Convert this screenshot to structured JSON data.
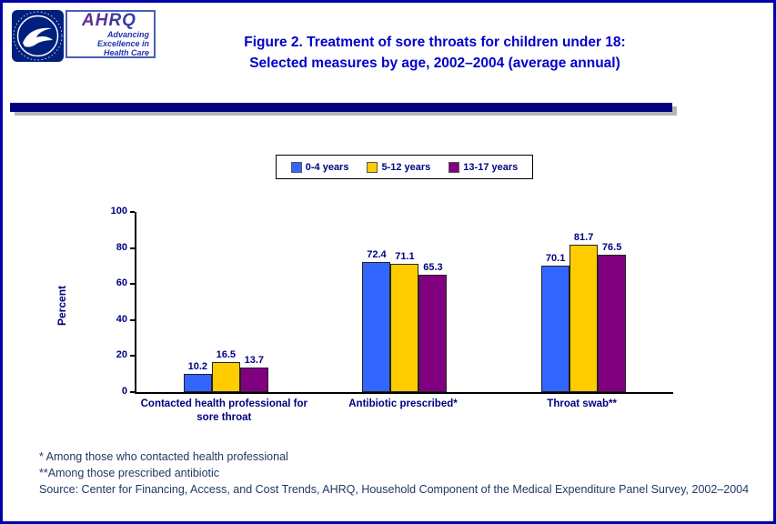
{
  "page": {
    "title_line1": "Figure 2. Treatment of sore throats for children under 18:",
    "title_line2": "Selected measures by age, 2002–2004 (average annual)"
  },
  "logos": {
    "ahrq_name": "AHRQ",
    "ahrq_tagline_line1": "Advancing",
    "ahrq_tagline_line2": "Excellence in",
    "ahrq_tagline_line3": "Health Care"
  },
  "chart_data": {
    "type": "bar",
    "title": "Treatment of sore throats for children under 18: Selected measures by age, 2002–2004 (average annual)",
    "categories": [
      "Contacted health professional for sore throat",
      "Antibiotic prescribed*",
      "Throat swab**"
    ],
    "series": [
      {
        "name": "0-4 years",
        "color": "#3366FF",
        "values": [
          10.2,
          72.4,
          70.1
        ]
      },
      {
        "name": "5-12 years",
        "color": "#FFCC00",
        "values": [
          16.5,
          71.1,
          81.7
        ]
      },
      {
        "name": "13-17 years",
        "color": "#800080",
        "values": [
          13.7,
          65.3,
          76.5
        ]
      }
    ],
    "xlabel": "",
    "ylabel": "Percent",
    "ylim": [
      0,
      100
    ],
    "yticks": [
      0,
      20,
      40,
      60,
      80,
      100
    ],
    "grid": "off",
    "legend_position": "top"
  },
  "footnotes": [
    "* Among those who contacted health professional",
    "**Among those prescribed antibiotic",
    "Source: Center for Financing, Access, and Cost Trends, AHRQ, Household Component of the Medical Expenditure Panel Survey, 2002–2004"
  ]
}
